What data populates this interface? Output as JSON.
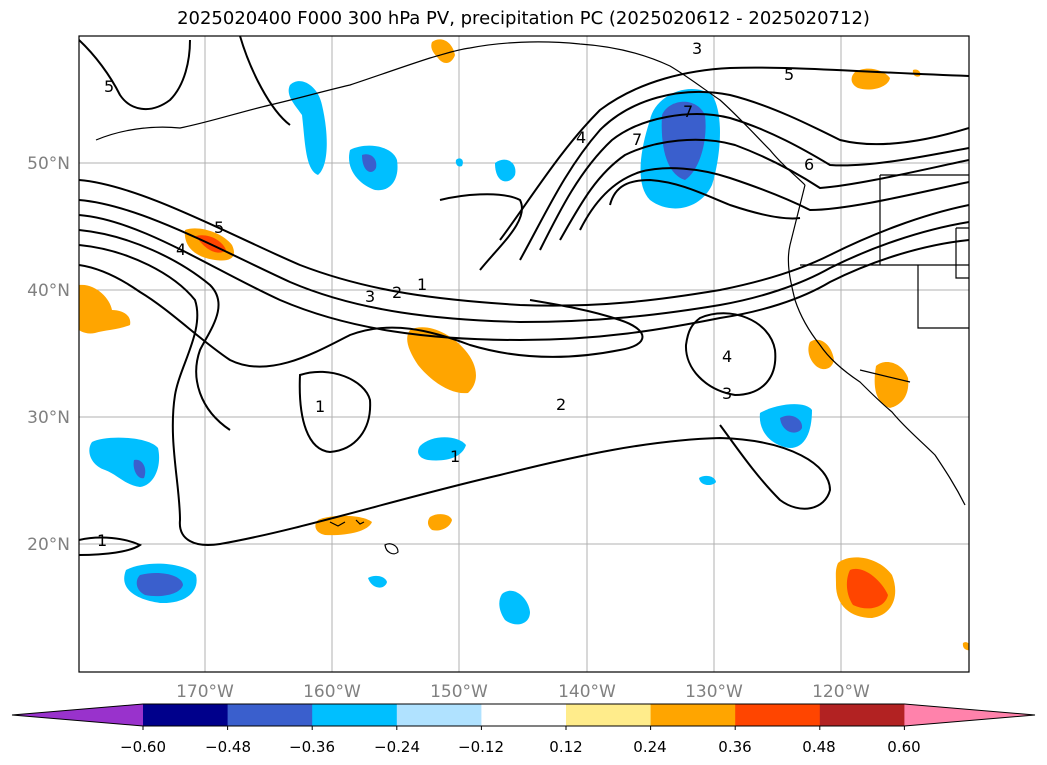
{
  "title": "2025020400 F000 300 hPa PV, precipitation PC (2025020612 - 2025020712)",
  "lat_labels": [
    "50°N",
    "40°N",
    "30°N",
    "20°N"
  ],
  "lon_labels": [
    "170°W",
    "160°W",
    "150°W",
    "140°W",
    "130°W",
    "120°W"
  ],
  "colorbar": {
    "ticks": [
      "−0.60",
      "−0.48",
      "−0.36",
      "−0.24",
      "−0.12",
      "0.12",
      "0.24",
      "0.36",
      "0.48",
      "0.60"
    ],
    "colors": [
      "#9932cc",
      "#00008b",
      "#3a5fcd",
      "#00bfff",
      "#b0e2ff",
      "#ffffff",
      "#ffec8b",
      "#ffa500",
      "#ff4500",
      "#b22222",
      "#ff82ab"
    ]
  },
  "contour_labels": [
    "5",
    "3",
    "5",
    "4",
    "7",
    "6",
    "7",
    "4",
    "5",
    "1",
    "2",
    "3",
    "4",
    "3",
    "2",
    "1",
    "1",
    "1"
  ]
}
